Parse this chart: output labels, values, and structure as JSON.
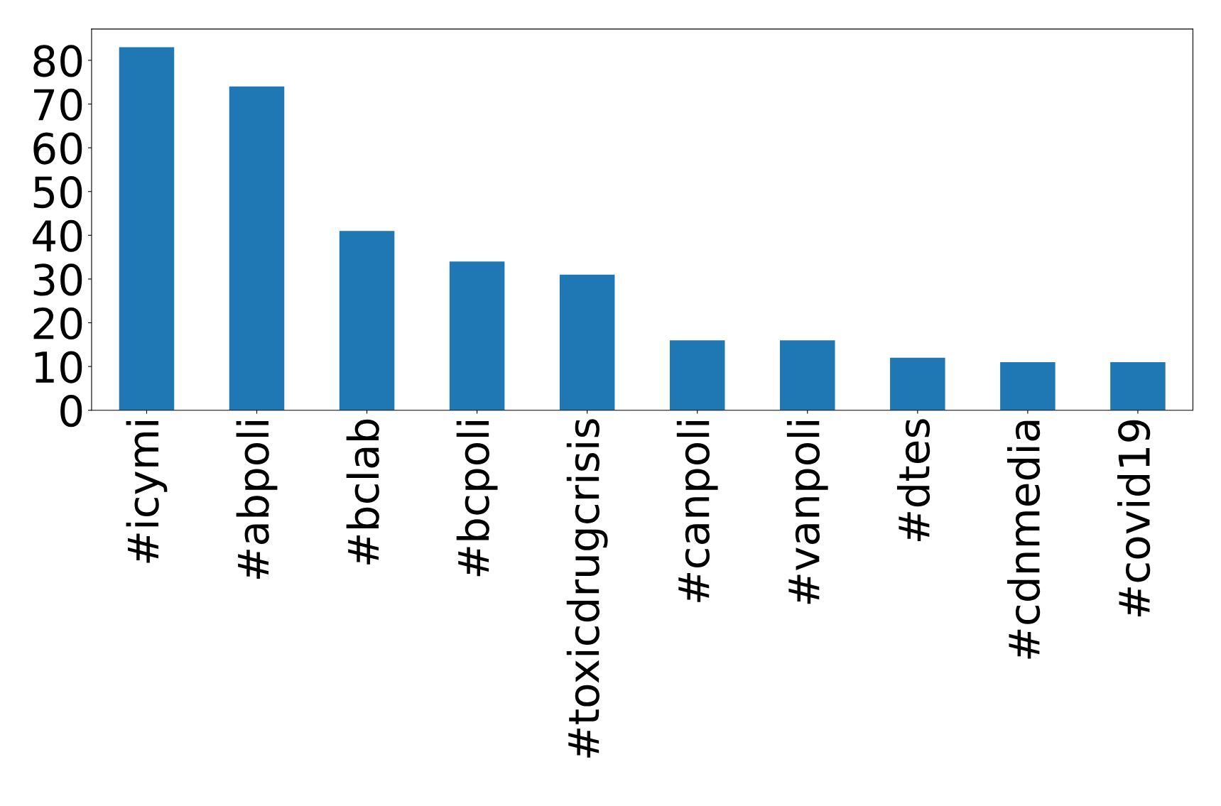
{
  "chart_data": {
    "type": "bar",
    "categories": [
      "#icymi",
      "#abpoli",
      "#bclab",
      "#bcpoli",
      "#toxicdrugcrisis",
      "#canpoli",
      "#vanpoli",
      "#dtes",
      "#cdnmedia",
      "#covid19"
    ],
    "values": [
      83,
      74,
      41,
      34,
      31,
      16,
      16,
      12,
      11,
      11
    ],
    "color": "#1f77b4",
    "ylim": [
      0,
      87.15
    ],
    "yticks": [
      0,
      10,
      20,
      30,
      40,
      50,
      60,
      70,
      80
    ],
    "grid": false,
    "legend": false
  }
}
